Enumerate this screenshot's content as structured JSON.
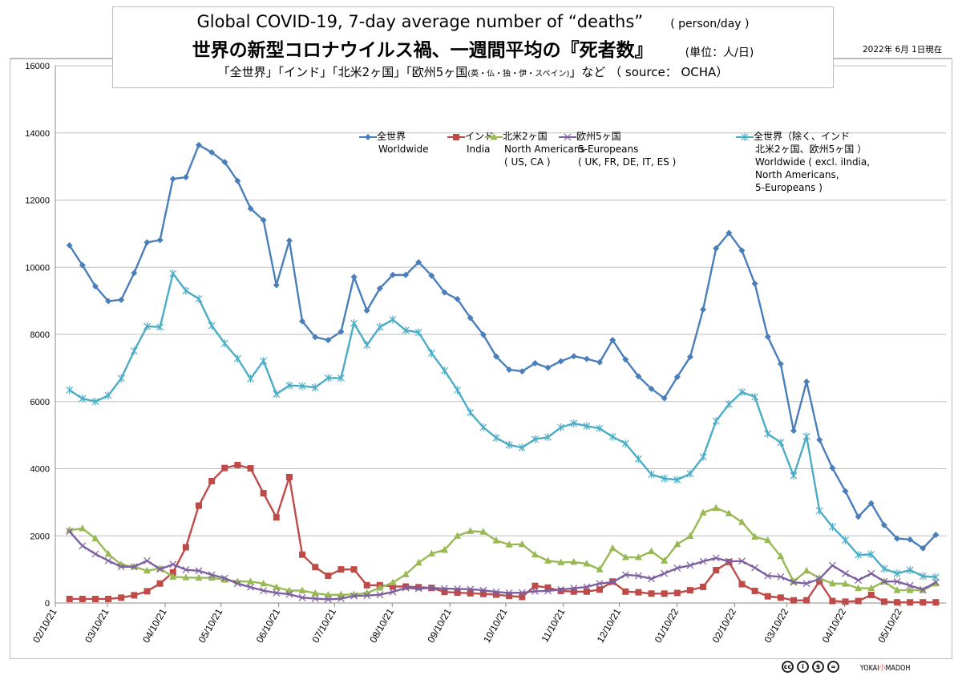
{
  "title": {
    "line1": "Global COVID-19, 7-day average number of “deaths”",
    "line1_unit": "( person/day )",
    "line2": "世界の新型コロナウイルス禍、一週間平均の『死者数』",
    "line2_unit": "(単位：人/日)",
    "line3_a": "「全世界」「インド」「北米2ヶ国」「欧州5ヶ国",
    "line3_small": "(英・仏・独・伊・スペイン)",
    "line3_b": "」など （ source： OCHA）"
  },
  "date_note": "2022年 6月 1日現在",
  "footer": {
    "license_icons": [
      "cc",
      "by",
      "nc",
      "nd"
    ],
    "brand_left": "YOKAI",
    "brand_mark": "小",
    "brand_right": "MADOH"
  },
  "chart_data": {
    "type": "line",
    "ylim": [
      0,
      16000
    ],
    "y_ticks": [
      "0",
      "2000",
      "4000",
      "6000",
      "8000",
      "10000",
      "12000",
      "14000",
      "16000"
    ],
    "x_tick_labels": [
      "02/10/21",
      "03/10/21",
      "04/10/21",
      "05/10/21",
      "06/10/21",
      "07/10/21",
      "08/10/21",
      "09/10/21",
      "10/10/21",
      "11/10/21",
      "12/10/21",
      "01/10/22",
      "02/10/22",
      "03/10/22",
      "04/10/22",
      "05/10/22"
    ],
    "grid": "horizontal",
    "legend_position": "top",
    "series": [
      {
        "name": "全世界",
        "name_en": [
          "Worldwide"
        ],
        "color": "#4a7ebb",
        "marker": "diamond",
        "values": [
          10650,
          10060,
          9430,
          8990,
          9030,
          9830,
          10740,
          10810,
          12630,
          12680,
          13640,
          13420,
          13130,
          12570,
          11750,
          11400,
          9470,
          10790,
          8390,
          7920,
          7830,
          8080,
          9710,
          8710,
          9370,
          9770,
          9770,
          10150,
          9750,
          9250,
          9050,
          8490,
          7990,
          7340,
          6950,
          6900,
          7140,
          7010,
          7200,
          7350,
          7270,
          7170,
          7830,
          7250,
          6750,
          6380,
          6100,
          6730,
          7330,
          8740,
          10560,
          11020,
          10500,
          9510,
          7930,
          7120,
          5130,
          6590,
          4860,
          4020,
          3330,
          2570,
          2970,
          2320,
          1920,
          1890,
          1630,
          2030
        ]
      },
      {
        "name": "インド",
        "name_en": [
          "India"
        ],
        "color": "#be4b48",
        "marker": "square",
        "values": [
          120,
          120,
          120,
          120,
          160,
          230,
          350,
          580,
          910,
          1660,
          2900,
          3630,
          4020,
          4110,
          4010,
          3270,
          2550,
          3750,
          1440,
          1070,
          810,
          1000,
          1000,
          530,
          530,
          490,
          490,
          470,
          450,
          330,
          310,
          290,
          270,
          250,
          210,
          180,
          510,
          460,
          360,
          340,
          340,
          400,
          640,
          340,
          320,
          280,
          280,
          300,
          380,
          480,
          980,
          1220,
          560,
          360,
          200,
          160,
          80,
          80,
          640,
          60,
          40,
          60,
          240,
          40,
          20,
          20,
          20,
          20
        ]
      },
      {
        "name": "北米2ヶ国",
        "name_en": [
          "North Americans",
          "( US, CA )"
        ],
        "color": "#98b954",
        "marker": "triangle",
        "values": [
          2170,
          2220,
          1920,
          1460,
          1140,
          1080,
          960,
          1030,
          780,
          760,
          750,
          750,
          690,
          640,
          640,
          580,
          470,
          370,
          370,
          290,
          240,
          250,
          250,
          300,
          450,
          610,
          850,
          1200,
          1470,
          1580,
          2000,
          2140,
          2120,
          1860,
          1740,
          1750,
          1440,
          1260,
          1210,
          1220,
          1170,
          1000,
          1630,
          1360,
          1360,
          1540,
          1260,
          1750,
          1990,
          2690,
          2830,
          2670,
          2410,
          1970,
          1870,
          1390,
          640,
          960,
          740,
          580,
          570,
          440,
          440,
          640,
          380,
          380,
          380,
          580
        ]
      },
      {
        "name": "欧州5ヶ国",
        "name_en": [
          "5-Europeans",
          "( UK, FR, DE, IT, ES )"
        ],
        "color": "#7d60a0",
        "marker": "x",
        "values": [
          2130,
          1700,
          1460,
          1260,
          1080,
          1080,
          1260,
          1010,
          1150,
          990,
          960,
          840,
          740,
          580,
          470,
          370,
          300,
          260,
          160,
          130,
          110,
          130,
          210,
          220,
          250,
          330,
          450,
          430,
          450,
          430,
          420,
          410,
          380,
          330,
          300,
          310,
          350,
          360,
          400,
          440,
          480,
          580,
          620,
          840,
          810,
          720,
          880,
          1040,
          1120,
          1240,
          1340,
          1240,
          1250,
          1050,
          810,
          780,
          620,
          580,
          720,
          1120,
          880,
          680,
          880,
          640,
          640,
          520,
          400,
          620
        ]
      },
      {
        "name": "全世界（除く、インド",
        "name_extra": "北米2ヶ国、欧州5ヶ国 ）",
        "name_en": [
          "Worldwide ( excl. iIndia,",
          "North Americans,",
          "5-Europeans )"
        ],
        "color": "#4bacc6",
        "marker": "asterisk",
        "values": [
          6340,
          6090,
          6000,
          6180,
          6690,
          7510,
          8240,
          8220,
          9810,
          9300,
          9060,
          8260,
          7730,
          7280,
          6680,
          7210,
          6220,
          6480,
          6460,
          6420,
          6700,
          6700,
          8330,
          7680,
          8220,
          8440,
          8120,
          8060,
          7440,
          6920,
          6340,
          5670,
          5230,
          4920,
          4710,
          4630,
          4880,
          4940,
          5230,
          5350,
          5270,
          5200,
          4950,
          4750,
          4290,
          3830,
          3710,
          3670,
          3850,
          4350,
          5420,
          5920,
          6280,
          6140,
          5040,
          4780,
          3790,
          4960,
          2750,
          2270,
          1870,
          1430,
          1450,
          1020,
          880,
          980,
          800,
          770
        ]
      }
    ]
  }
}
